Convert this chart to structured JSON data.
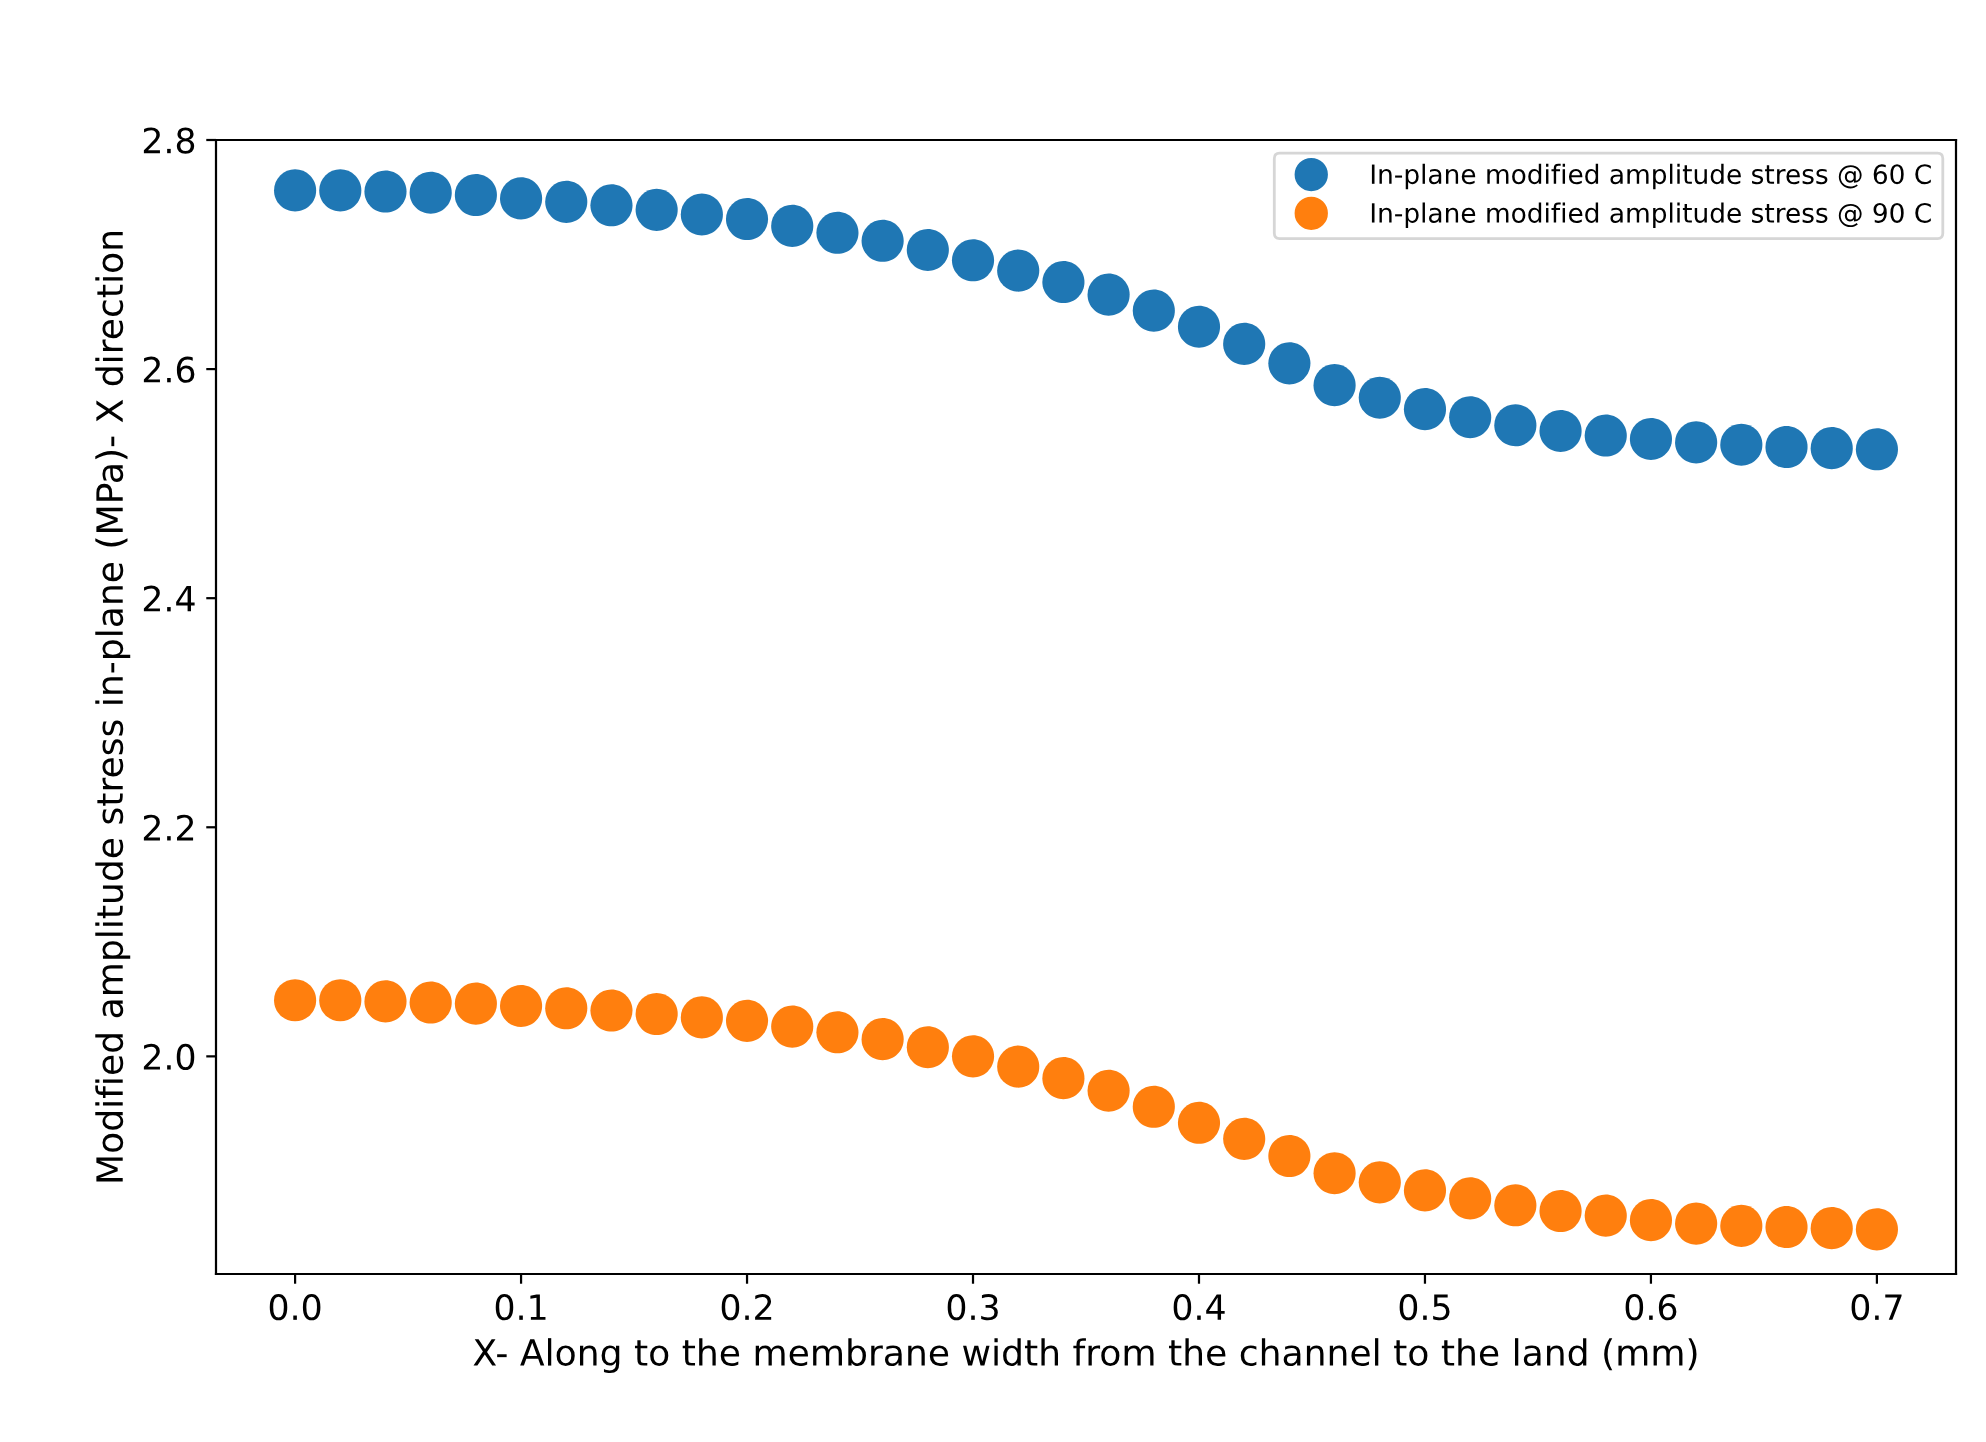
{
  "chart_data": {
    "type": "scatter",
    "xlabel": "X- Along to the membrane width from the channel to the land (mm)",
    "ylabel": "Modified amplitude stress in-plane (MPa)- X direction",
    "x": [
      0,
      0.02,
      0.04,
      0.06,
      0.08,
      0.1,
      0.12,
      0.14,
      0.16,
      0.18,
      0.2,
      0.22,
      0.24,
      0.26,
      0.28,
      0.3,
      0.32,
      0.34,
      0.36,
      0.38,
      0.4,
      0.42,
      0.44,
      0.46,
      0.48,
      0.5,
      0.52,
      0.54,
      0.56,
      0.58,
      0.6,
      0.62,
      0.64,
      0.66,
      0.68,
      0.7
    ],
    "series": [
      {
        "name": "In-plane modified amplitude stress @ 60 C",
        "color": "#1f77b4",
        "values": [
          2.756,
          2.756,
          2.755,
          2.754,
          2.752,
          2.749,
          2.746,
          2.743,
          2.739,
          2.735,
          2.731,
          2.725,
          2.719,
          2.712,
          2.704,
          2.695,
          2.686,
          2.676,
          2.665,
          2.651,
          2.637,
          2.622,
          2.605,
          2.586,
          2.575,
          2.565,
          2.558,
          2.551,
          2.546,
          2.542,
          2.539,
          2.536,
          2.534,
          2.532,
          2.531,
          2.53
        ]
      },
      {
        "name": "In-plane modified amplitude stress @ 90 C",
        "color": "#ff7f0e",
        "values": [
          2.049,
          2.049,
          2.048,
          2.047,
          2.046,
          2.044,
          2.042,
          2.04,
          2.037,
          2.034,
          2.031,
          2.026,
          2.021,
          2.015,
          2.008,
          2.0,
          1.991,
          1.981,
          1.97,
          1.956,
          1.942,
          1.928,
          1.913,
          1.898,
          1.89,
          1.883,
          1.876,
          1.87,
          1.865,
          1.861,
          1.857,
          1.854,
          1.852,
          1.851,
          1.85,
          1.849
        ]
      }
    ],
    "xlim": [
      -0.035,
      0.735
    ],
    "xticks": [
      {
        "value": 0,
        "label": "0.0"
      },
      0.1,
      0.2,
      0.3,
      0.4,
      0.5,
      0.6,
      0.7
    ],
    "ylim": [
      1.81,
      2.8
    ],
    "yticks": [
      {
        "value": 2,
        "label": "2.0"
      },
      2.2,
      2.4,
      2.6,
      2.8
    ],
    "legend": "top right",
    "marker": "circle",
    "grid": false
  }
}
